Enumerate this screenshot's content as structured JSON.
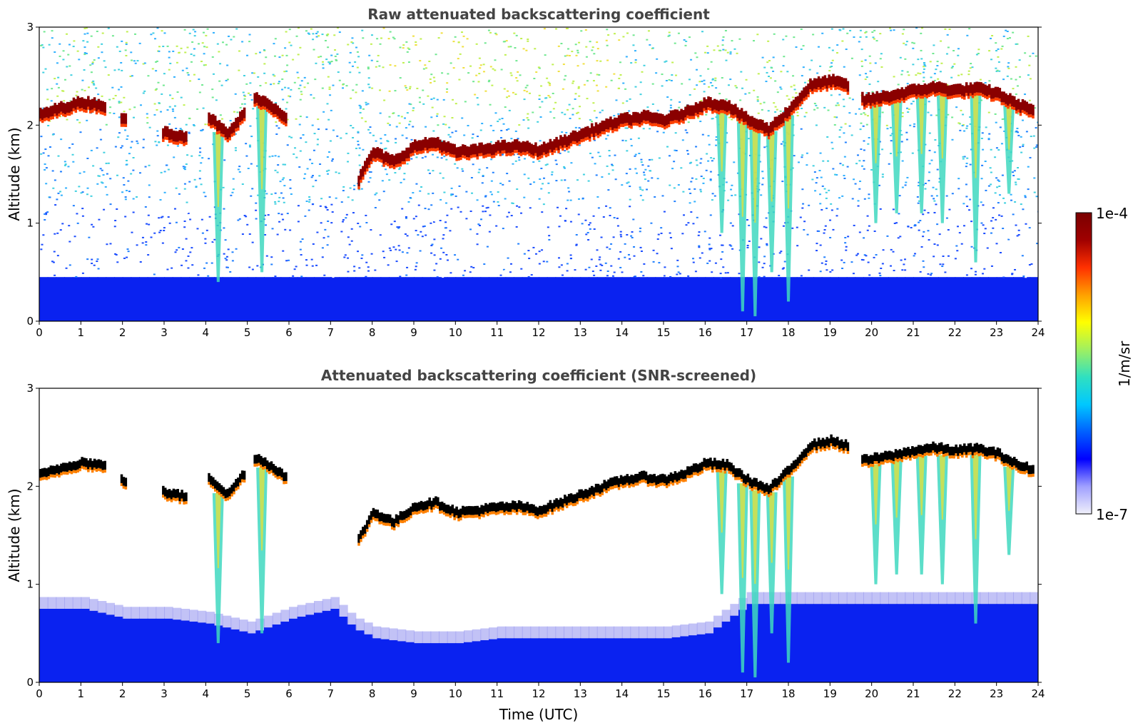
{
  "chart_data": [
    {
      "type": "heatmap",
      "title": "Raw attenuated backscattering coefficient",
      "xlabel": "",
      "ylabel": "Altitude (km)",
      "xlim": [
        0,
        24
      ],
      "ylim": [
        0,
        3
      ],
      "xticks": [
        "0",
        "1",
        "2",
        "3",
        "4",
        "5",
        "6",
        "7",
        "8",
        "9",
        "10",
        "11",
        "12",
        "13",
        "14",
        "15",
        "16",
        "17",
        "18",
        "19",
        "20",
        "21",
        "22",
        "23",
        "24"
      ],
      "yticks": [
        "0",
        "1",
        "2",
        "3"
      ],
      "screened": false,
      "cloud_layer": {
        "time": [
          0,
          0.5,
          1,
          1.5,
          2,
          3,
          3.5,
          4,
          4.5,
          5.2,
          5.7,
          7.6,
          8,
          8.5,
          9,
          9.5,
          10,
          10.5,
          11,
          11.5,
          12,
          12.5,
          13,
          13.5,
          14,
          14.5,
          15,
          15.5,
          16,
          16.5,
          17,
          17.5,
          18,
          18.5,
          19,
          19.4,
          19.8,
          20.5,
          21,
          21.5,
          22,
          22.5,
          23,
          23.5,
          23.9
        ],
        "altitude_km": [
          2.1,
          2.17,
          2.23,
          2.2,
          2.05,
          1.92,
          1.88,
          2.1,
          1.9,
          2.28,
          2.15,
          1.4,
          1.72,
          1.62,
          1.78,
          1.82,
          1.72,
          1.74,
          1.77,
          1.78,
          1.74,
          1.82,
          1.9,
          1.98,
          2.05,
          2.08,
          2.05,
          2.12,
          2.22,
          2.2,
          2.05,
          1.95,
          2.15,
          2.4,
          2.45,
          2.4,
          2.25,
          2.3,
          2.35,
          2.38,
          2.35,
          2.37,
          2.32,
          2.2,
          2.15
        ]
      },
      "precipitation_streaks": [
        {
          "time": 4.3,
          "bottom_km": 0.4
        },
        {
          "time": 5.35,
          "bottom_km": 0.5
        },
        {
          "time": 16.4,
          "bottom_km": 0.9
        },
        {
          "time": 16.9,
          "bottom_km": 0.1
        },
        {
          "time": 17.2,
          "bottom_km": 0.05
        },
        {
          "time": 17.6,
          "bottom_km": 0.5
        },
        {
          "time": 18.0,
          "bottom_km": 0.2
        },
        {
          "time": 20.1,
          "bottom_km": 1.0
        },
        {
          "time": 20.6,
          "bottom_km": 1.1
        },
        {
          "time": 21.2,
          "bottom_km": 1.1
        },
        {
          "time": 21.7,
          "bottom_km": 1.0
        },
        {
          "time": 22.5,
          "bottom_km": 0.6
        },
        {
          "time": 23.3,
          "bottom_km": 1.3
        }
      ]
    },
    {
      "type": "heatmap",
      "title": "Attenuated backscattering coefficient (SNR-screened)",
      "xlabel": "Time (UTC)",
      "ylabel": "Altitude (km)",
      "xlim": [
        0,
        24
      ],
      "ylim": [
        0,
        3
      ],
      "xticks": [
        "0",
        "1",
        "2",
        "3",
        "4",
        "5",
        "6",
        "7",
        "8",
        "9",
        "10",
        "11",
        "12",
        "13",
        "14",
        "15",
        "16",
        "17",
        "18",
        "19",
        "20",
        "21",
        "22",
        "23",
        "24"
      ],
      "yticks": [
        "0",
        "1",
        "2",
        "3"
      ],
      "screened": true,
      "boundary_layer_top": {
        "time": [
          0,
          1,
          2,
          3,
          4,
          5,
          6,
          7,
          7.5,
          8,
          9,
          10,
          11,
          12,
          13,
          14,
          15,
          16,
          17,
          18,
          19,
          20,
          21,
          22,
          23,
          24
        ],
        "altitude_km": [
          0.75,
          0.75,
          0.65,
          0.65,
          0.6,
          0.5,
          0.65,
          0.75,
          0.55,
          0.45,
          0.4,
          0.4,
          0.45,
          0.45,
          0.45,
          0.45,
          0.45,
          0.5,
          0.8,
          0.8,
          0.8,
          0.8,
          0.8,
          0.8,
          0.8,
          0.8
        ]
      }
    }
  ],
  "colorbar": {
    "max_label": "1e-4",
    "min_label": "1e-7",
    "label": "1/m/sr",
    "colors": [
      "#f0f0fa",
      "#a0a0ff",
      "#0000ff",
      "#0060ff",
      "#00c8ff",
      "#30e0c0",
      "#a0f060",
      "#ffff00",
      "#ffa000",
      "#ff3000",
      "#a00000",
      "#7a0000"
    ]
  }
}
